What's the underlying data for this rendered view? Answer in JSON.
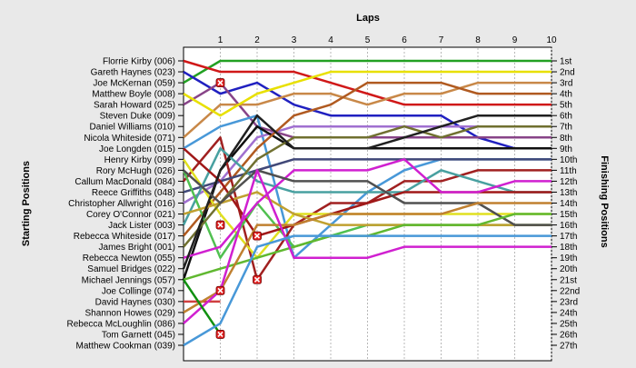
{
  "chart_data": {
    "type": "line",
    "title": "Laps",
    "xlabel": "Laps",
    "ylabel_left": "Starting Positions",
    "ylabel_right": "Finishing Positions",
    "x_ticks": [
      1,
      2,
      3,
      4,
      5,
      6,
      7,
      8,
      9,
      10
    ],
    "xlim": [
      0,
      10
    ],
    "ylim": [
      1,
      27
    ],
    "grid": "vertical",
    "finishing_labels": [
      "1st",
      "2nd",
      "3rd",
      "4th",
      "5th",
      "6th",
      "7th",
      "8th",
      "9th",
      "10th",
      "11th",
      "12th",
      "13th",
      "14th",
      "15th",
      "16th",
      "17th",
      "18th",
      "19th",
      "20th",
      "21st",
      "22nd",
      "23rd",
      "24th",
      "25th",
      "26th",
      "27th"
    ],
    "series": [
      {
        "name": "Florrie Kirby (006)",
        "color": "#22a022",
        "values": [
          3,
          1,
          1,
          1,
          1,
          1,
          1,
          1,
          1,
          1,
          1
        ]
      },
      {
        "name": "Gareth Haynes (023)",
        "color": "#d01818",
        "values": [
          1,
          2,
          2,
          2,
          3,
          4,
          5,
          5,
          5,
          5,
          5
        ]
      },
      {
        "name": "Joe McKernan (059)",
        "color": "#2020c0",
        "values": [
          2,
          4,
          3,
          5,
          6,
          6,
          6,
          6,
          8,
          9,
          9
        ]
      },
      {
        "name": "Matthew Boyle (008)",
        "color": "#884488",
        "values": [
          5,
          3,
          7,
          8,
          8,
          8,
          8,
          8,
          8,
          8,
          8
        ]
      },
      {
        "name": "Sarah Howard (025)",
        "color": "#c88848",
        "values": [
          8,
          5,
          5,
          4,
          4,
          5,
          4,
          4,
          3,
          3,
          3
        ]
      },
      {
        "name": "Steven Duke (009)",
        "color": "#e8e000",
        "values": [
          4,
          6,
          4,
          3,
          2,
          2,
          2,
          2,
          2,
          2,
          2
        ]
      },
      {
        "name": "Daniel Williams (010)",
        "color": "#4898d8",
        "values": [
          9,
          7,
          6,
          19,
          16,
          13,
          11,
          10,
          10,
          10,
          10
        ]
      },
      {
        "name": "Nicola Whiteside (071)",
        "color": "#a070d0",
        "values": [
          14,
          12,
          8,
          7,
          7,
          7,
          7,
          7,
          7,
          7,
          7
        ]
      },
      {
        "name": "Joe Longden (015)",
        "color": "#101010",
        "values": [
          21,
          11,
          7,
          9,
          9,
          9,
          9,
          9,
          9,
          9,
          9
        ]
      },
      {
        "name": "Henry Kirby (099)",
        "color": "#b05a20",
        "values": [
          17,
          13,
          9,
          6,
          5,
          3,
          3,
          3,
          4,
          4,
          4
        ]
      },
      {
        "name": "Rory McHugh (026)",
        "color": "#a02020",
        "values": [
          12,
          8,
          21,
          16,
          14,
          14,
          12,
          12,
          11,
          11,
          11
        ]
      },
      {
        "name": "Callum MacDonald (084)",
        "color": "#e0e020",
        "values": [
          10,
          15,
          19,
          15,
          15,
          15,
          15,
          15,
          15,
          15,
          15
        ]
      },
      {
        "name": "Reece Griffiths (048)",
        "color": "#404878",
        "values": [
          13,
          12,
          11,
          10,
          10,
          10,
          10,
          10,
          10,
          10,
          10
        ]
      },
      {
        "name": "Christopher Allwright (016)",
        "color": "#48a0a0",
        "values": [
          16,
          9,
          12,
          13,
          13,
          13,
          13,
          11,
          12,
          13,
          13
        ]
      },
      {
        "name": "Corey O'Connor (021)",
        "color": "#50c050",
        "values": [
          11,
          19,
          14,
          18,
          17,
          16,
          16,
          16,
          16,
          16,
          16
        ]
      },
      {
        "name": "Jack Lister (003)",
        "color": "#c0a030",
        "values": [
          15,
          14,
          13,
          15,
          16,
          16,
          16,
          16,
          16,
          16,
          16
        ]
      },
      {
        "name": "Rebecca Whiteside (017)",
        "color": "#a01818",
        "values": [
          9,
          12,
          17,
          16,
          15,
          14,
          13,
          13,
          13,
          13,
          13
        ]
      },
      {
        "name": "James Bright (001)",
        "color": "#707030",
        "values": [
          18,
          14,
          10,
          8,
          8,
          8,
          7,
          8,
          7,
          7,
          7
        ]
      },
      {
        "name": "Rebecca Newton (055)",
        "color": "#d020d0",
        "values": [
          19,
          18,
          14,
          11,
          11,
          11,
          10,
          13,
          13,
          12,
          12
        ]
      },
      {
        "name": "Samuel Bridges (022)",
        "color": "#202020",
        "values": [
          20,
          11,
          6,
          9,
          9,
          9,
          8,
          7,
          6,
          6,
          6
        ]
      },
      {
        "name": "Michael Jennings (057)",
        "color": "#505050",
        "values": [
          11,
          14,
          11,
          12,
          12,
          12,
          14,
          14,
          14,
          16,
          16
        ]
      },
      {
        "name": "Joe Collinge (074)",
        "color": "#60b830",
        "values": [
          21,
          20,
          19,
          18,
          17,
          17,
          16,
          16,
          16,
          15,
          15
        ]
      },
      {
        "name": "David Haynes (030)",
        "color": "#d04040",
        "values": [
          23,
          23
        ]
      },
      {
        "name": "Shannon Howes (029)",
        "color": "#c08030",
        "values": [
          24,
          22,
          16,
          16,
          15,
          15,
          15,
          15,
          14,
          14,
          14
        ]
      },
      {
        "name": "Rebecca McLoughlin (086)",
        "color": "#d020d0",
        "values": [
          25,
          22,
          11,
          19,
          19,
          19,
          18,
          18,
          18,
          18,
          18
        ]
      },
      {
        "name": "Tom Garnett (045)",
        "color": "#109010",
        "values": [
          21,
          26
        ]
      },
      {
        "name": "Matthew Cookman (039)",
        "color": "#4898d8",
        "values": [
          27,
          25,
          18,
          17,
          17,
          17,
          17,
          17,
          17,
          17,
          17
        ]
      }
    ],
    "retirements": [
      {
        "lap": 1,
        "position": 3
      },
      {
        "lap": 1,
        "position": 16
      },
      {
        "lap": 2,
        "position": 17
      },
      {
        "lap": 2,
        "position": 21
      },
      {
        "lap": 1,
        "position": 22
      },
      {
        "lap": 1,
        "position": 26
      }
    ]
  }
}
